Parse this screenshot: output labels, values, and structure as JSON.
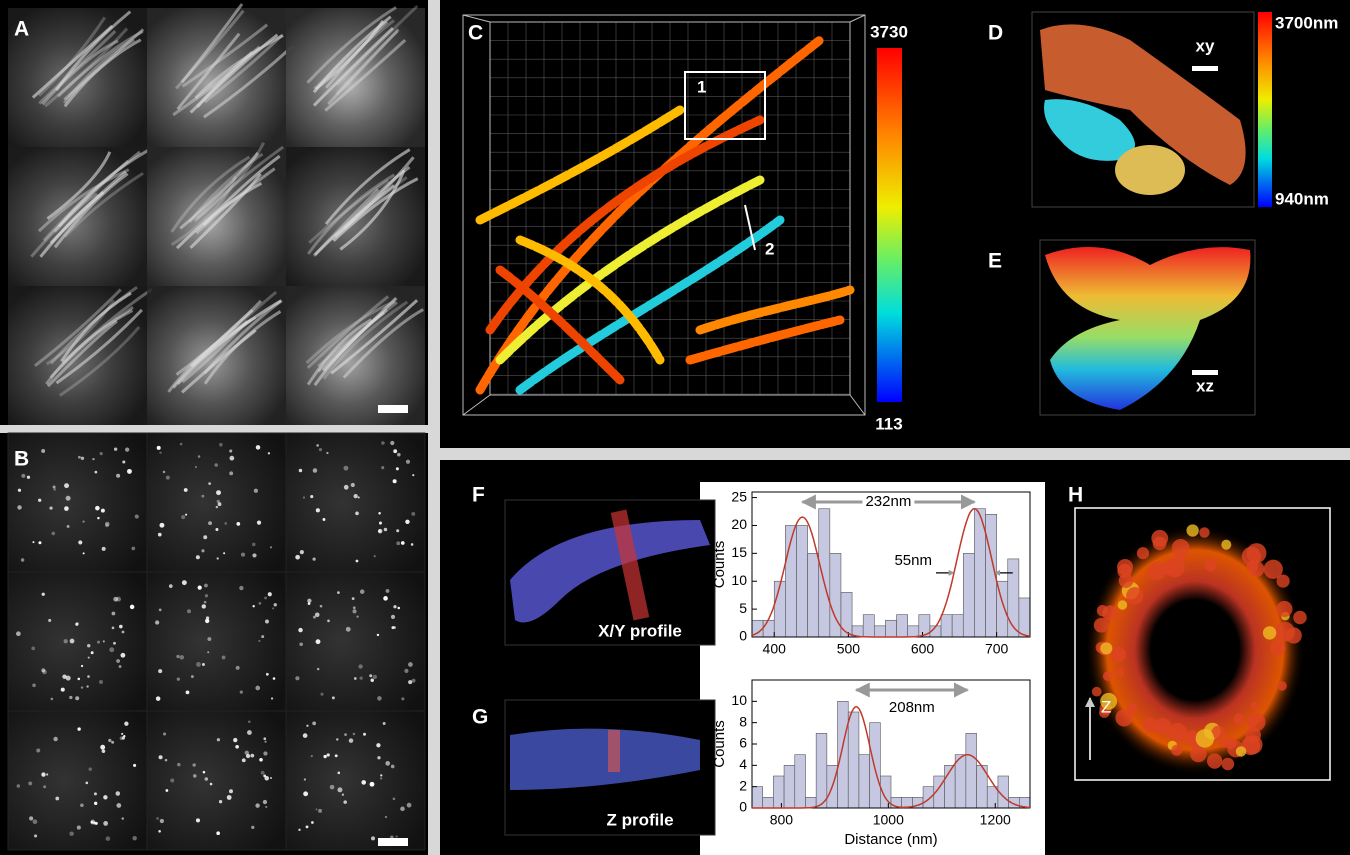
{
  "labels": {
    "A": "A",
    "B": "B",
    "C": "C",
    "D": "D",
    "E": "E",
    "F": "F",
    "G": "G",
    "H": "H"
  },
  "c_box": "1",
  "c_line": "2",
  "c_colorbar_max": "3730",
  "c_colorbar_min": "113",
  "d_scale": "xy",
  "d_colorbar_max": "3700nm",
  "d_colorbar_min": "940nm",
  "e_scale": "xz",
  "f_caption": "X/Y profile",
  "g_caption": "Z profile",
  "h_axis": "Z",
  "chart_data": [
    {
      "type": "histogram",
      "ylabel": "Counts",
      "bins": [
        370,
        385,
        400,
        415,
        430,
        445,
        460,
        475,
        490,
        505,
        520,
        535,
        550,
        565,
        580,
        595,
        610,
        625,
        640,
        655,
        670,
        685,
        700,
        715,
        730,
        745
      ],
      "values": [
        3,
        3,
        10,
        20,
        20,
        15,
        23,
        15,
        8,
        2,
        4,
        2,
        3,
        4,
        2,
        4,
        2,
        4,
        4,
        15,
        23,
        22,
        10,
        14,
        7
      ],
      "color": "#c5c8e0",
      "xlim": [
        370,
        745
      ],
      "ylim": [
        0,
        26
      ],
      "xticks": [
        400,
        500,
        600,
        700
      ],
      "yticks": [
        0,
        5,
        10,
        15,
        20,
        25
      ],
      "fit": {
        "color": "#c0392b",
        "peaks": [
          {
            "center": 438,
            "fwhm": 55,
            "amplitude": 21.5
          },
          {
            "center": 670,
            "fwhm": 55,
            "amplitude": 23
          }
        ]
      },
      "annotations": [
        "232nm",
        "55nm"
      ]
    },
    {
      "type": "histogram",
      "ylabel": "Counts",
      "xlabel": "Distance (nm)",
      "bins": [
        745,
        765,
        785,
        805,
        825,
        845,
        865,
        885,
        905,
        925,
        945,
        965,
        985,
        1005,
        1025,
        1045,
        1065,
        1085,
        1105,
        1125,
        1145,
        1165,
        1185,
        1205,
        1225,
        1245,
        1265
      ],
      "values": [
        2,
        1,
        3,
        4,
        5,
        1,
        7,
        4,
        10,
        9,
        5,
        8,
        3,
        1,
        1,
        1,
        2,
        3,
        4,
        5,
        7,
        4,
        2,
        3,
        1,
        1
      ],
      "color": "#c5c8e0",
      "xlim": [
        745,
        1265
      ],
      "ylim": [
        0,
        12
      ],
      "xticks": [
        800,
        1000,
        1200
      ],
      "yticks": [
        0,
        2,
        4,
        6,
        8,
        10
      ],
      "fit": {
        "color": "#c0392b",
        "peaks": [
          {
            "center": 940,
            "fwhm": 60,
            "amplitude": 9.5
          },
          {
            "center": 1148,
            "fwhm": 90,
            "amplitude": 5
          }
        ]
      },
      "annotations": [
        "208nm"
      ]
    }
  ]
}
